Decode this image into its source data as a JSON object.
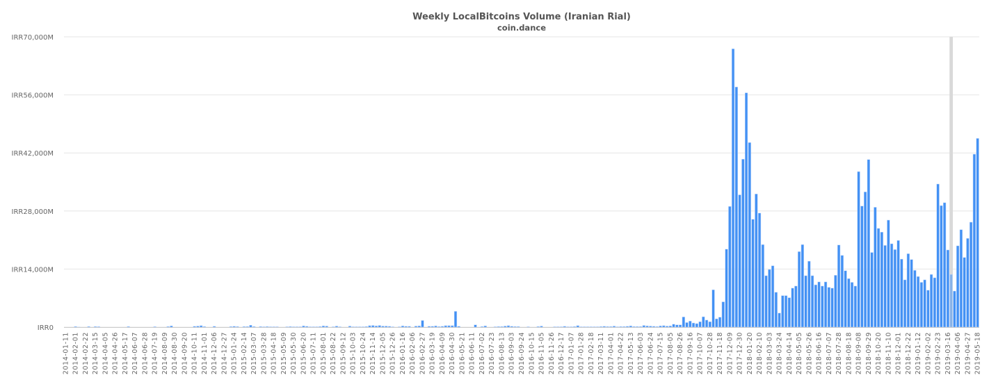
{
  "chart_data": {
    "type": "bar",
    "title": "Weekly LocalBitcoins Volume (Iranian Rial)",
    "subtitle": "coin.dance",
    "xlabel": "",
    "ylabel": "",
    "ylim": [
      0,
      70000
    ],
    "y_unit": "IRR millions",
    "y_ticks": [
      "IRR0",
      "IRR14,000M",
      "IRR28,000M",
      "IRR42,000M",
      "IRR56,000M",
      "IRR70,000M"
    ],
    "y_tick_values": [
      0,
      14000,
      28000,
      42000,
      56000,
      70000
    ],
    "grid": true,
    "legend": "none",
    "bar_color": "#4391f4",
    "hover_band_color": "#d9d9d9",
    "hovered_week": "2019-03-23",
    "tick_labels": [
      "2014-01-11",
      "2014-02-01",
      "2014-02-22",
      "2014-03-15",
      "2014-04-05",
      "2014-04-26",
      "2014-05-17",
      "2014-06-07",
      "2014-06-28",
      "2014-07-19",
      "2014-08-09",
      "2014-08-30",
      "2014-09-20",
      "2014-10-11",
      "2014-11-01",
      "2014-12-06",
      "2014-12-27",
      "2015-01-24",
      "2015-02-14",
      "2015-03-07",
      "2015-03-28",
      "2015-04-18",
      "2015-05-09",
      "2015-05-30",
      "2015-06-20",
      "2015-07-11",
      "2015-08-01",
      "2015-08-22",
      "2015-09-12",
      "2015-10-03",
      "2015-10-24",
      "2015-11-14",
      "2015-12-05",
      "2015-12-26",
      "2016-01-16",
      "2016-02-06",
      "2016-02-27",
      "2016-03-19",
      "2016-04-09",
      "2016-04-30",
      "2016-05-21",
      "2016-06-11",
      "2016-07-02",
      "2016-07-23",
      "2016-08-13",
      "2016-09-03",
      "2016-09-24",
      "2016-10-15",
      "2016-11-05",
      "2016-11-26",
      "2016-12-17",
      "2017-01-07",
      "2017-01-28",
      "2017-02-18",
      "2017-03-11",
      "2017-04-01",
      "2017-04-22",
      "2017-05-13",
      "2017-06-03",
      "2017-06-24",
      "2017-07-15",
      "2017-08-05",
      "2017-08-26",
      "2017-09-16",
      "2017-10-07",
      "2017-10-28",
      "2017-11-18",
      "2017-12-09",
      "2017-12-30",
      "2018-01-20",
      "2018-02-10",
      "2018-03-03",
      "2018-03-24",
      "2018-04-14",
      "2018-05-05",
      "2018-05-26",
      "2018-06-16",
      "2018-07-07",
      "2018-07-28",
      "2018-08-18",
      "2018-09-08",
      "2018-09-29",
      "2018-10-20",
      "2018-11-10",
      "2018-12-01",
      "2018-12-22",
      "2019-01-12",
      "2019-02-02",
      "2019-02-23",
      "2019-03-16",
      "2019-04-06",
      "2019-04-27",
      "2019-05-18"
    ],
    "values": [
      0,
      0,
      0,
      150,
      30,
      0,
      0,
      150,
      0,
      150,
      120,
      0,
      0,
      0,
      0,
      0,
      0,
      0,
      0,
      150,
      0,
      0,
      0,
      0,
      0,
      0,
      0,
      120,
      0,
      0,
      0,
      150,
      300,
      0,
      0,
      0,
      0,
      0,
      0,
      200,
      250,
      350,
      150,
      0,
      0,
      200,
      0,
      0,
      0,
      0,
      150,
      200,
      150,
      0,
      150,
      150,
      450,
      150,
      0,
      150,
      100,
      150,
      100,
      100,
      100,
      0,
      0,
      100,
      150,
      100,
      100,
      100,
      300,
      200,
      100,
      100,
      100,
      150,
      300,
      250,
      0,
      100,
      250,
      100,
      0,
      0,
      250,
      100,
      100,
      100,
      100,
      150,
      350,
      400,
      300,
      400,
      250,
      250,
      200,
      100,
      0,
      100,
      300,
      200,
      200,
      0,
      250,
      300,
      1600,
      0,
      200,
      200,
      300,
      150,
      200,
      350,
      350,
      350,
      3800,
      200,
      0,
      0,
      0,
      0,
      550,
      0,
      150,
      300,
      0,
      0,
      100,
      150,
      150,
      250,
      350,
      200,
      150,
      150,
      0,
      0,
      100,
      0,
      0,
      150,
      250,
      0,
      0,
      0,
      100,
      100,
      100,
      200,
      100,
      100,
      150,
      350,
      100,
      100,
      100,
      100,
      100,
      100,
      150,
      200,
      150,
      150,
      250,
      100,
      150,
      150,
      200,
      300,
      150,
      150,
      150,
      400,
      300,
      250,
      200,
      150,
      300,
      350,
      250,
      300,
      700,
      550,
      550,
      2450,
      1100,
      1450,
      1000,
      850,
      1300,
      2500,
      1700,
      1300,
      9000,
      2000,
      2400,
      6100,
      18800,
      29100,
      67100,
      57900,
      31900,
      40500,
      56500,
      44500,
      26000,
      32100,
      27500,
      19900,
      12400,
      13900,
      14800,
      8400,
      3400,
      7600,
      7600,
      7100,
      9400,
      9900,
      18200,
      19900,
      12400,
      15900,
      12400,
      10200,
      10900,
      9900,
      10900,
      9600,
      9400,
      12500,
      19800,
      17300,
      13600,
      11700,
      10800,
      9900,
      37500,
      29200,
      32600,
      40400,
      18000,
      28900,
      23800,
      22900,
      19700,
      25800,
      20100,
      18700,
      20900,
      16400,
      11400,
      17700,
      16300,
      13700,
      12200,
      10800,
      11400,
      8900,
      12700,
      11900,
      34500,
      29300,
      30000,
      18600,
      12700,
      8700,
      19600,
      23500,
      16800,
      21400,
      25300,
      41700,
      45500
    ]
  }
}
